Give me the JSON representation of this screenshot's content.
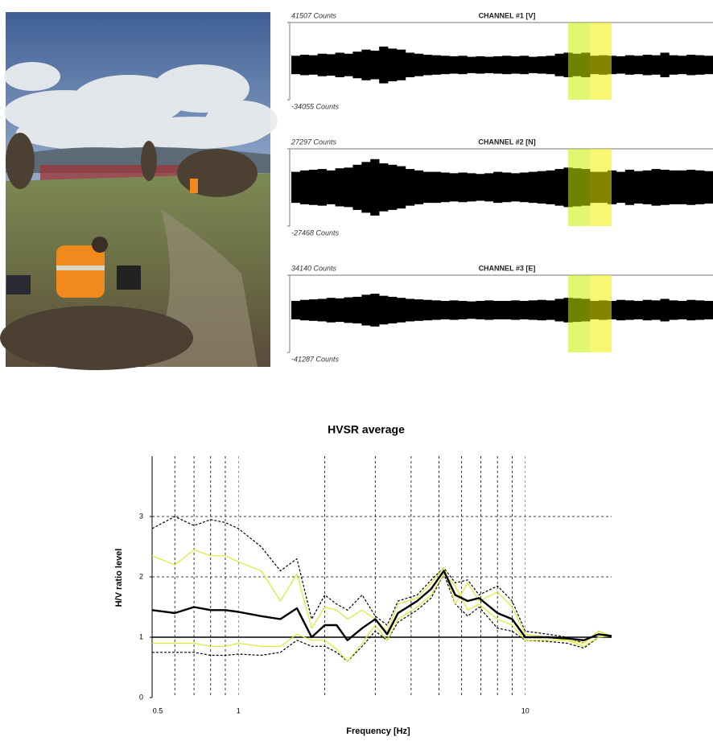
{
  "chart_data": [
    {
      "type": "waveform",
      "title": "CHANNEL #1 [V]",
      "color": "#000000",
      "ylim": [
        -34055,
        41507
      ],
      "yticks": [
        {
          "value": 41507,
          "label": "41507 Counts"
        },
        {
          "value": -34055,
          "label": "-34055 Counts"
        }
      ],
      "values": [
        9000,
        10000,
        9500,
        11000,
        10500,
        12000,
        11000,
        13000,
        15000,
        14000,
        18000,
        16000,
        15000,
        12000,
        11000,
        10000,
        9500,
        9000,
        8500,
        9000,
        8000,
        8500,
        8000,
        8500,
        9000,
        8500,
        9000,
        8000,
        8500,
        9000,
        11000,
        12000,
        11000,
        12000,
        9000,
        9500,
        9000,
        8500,
        9500,
        9000,
        10000,
        9500,
        12000,
        9500,
        9000,
        10000,
        9500,
        9000
      ]
    },
    {
      "type": "waveform",
      "title": "CHANNEL #2 [N]",
      "color": "#000000",
      "ylim": [
        -27468,
        27297
      ],
      "yticks": [
        {
          "value": 27297,
          "label": "27297 Counts"
        },
        {
          "value": -27468,
          "label": "-27468 Counts"
        }
      ],
      "values": [
        11000,
        12000,
        12500,
        13000,
        12000,
        13500,
        14000,
        16000,
        18000,
        20000,
        17000,
        16000,
        15000,
        13000,
        12000,
        11000,
        11000,
        10500,
        10000,
        10500,
        10000,
        9500,
        10000,
        11000,
        10500,
        10000,
        10500,
        11000,
        11500,
        12000,
        13000,
        14000,
        13500,
        13000,
        11000,
        11000,
        12000,
        11000,
        12500,
        11500,
        12000,
        13000,
        12500,
        12000,
        12000,
        12500,
        12000,
        11500
      ]
    },
    {
      "type": "waveform",
      "title": "CHANNEL #3 [E]",
      "color": "#000000",
      "ylim": [
        -41287,
        34140
      ],
      "yticks": [
        {
          "value": 34140,
          "label": "34140 Counts"
        },
        {
          "value": -41287,
          "label": "-41287 Counts"
        }
      ],
      "values": [
        9000,
        10000,
        10500,
        11000,
        12000,
        11500,
        12500,
        13000,
        15000,
        16000,
        14000,
        13000,
        12000,
        11000,
        10500,
        10000,
        9500,
        9000,
        9500,
        9000,
        8500,
        9000,
        9500,
        9000,
        9000,
        9500,
        9000,
        9500,
        10000,
        9500,
        11000,
        12000,
        11500,
        11000,
        9000,
        9500,
        9000,
        10000,
        9500,
        9000,
        10000,
        9500,
        11000,
        9500,
        9000,
        10000,
        9500,
        9000
      ]
    },
    {
      "type": "line",
      "title": "HVSR average",
      "x_label": "Frequency [Hz]",
      "y_label": "H/V ratio level",
      "xscale": "log",
      "xlim": [
        0.5,
        20
      ],
      "ylim": [
        0,
        4
      ],
      "xticks": [
        0.5,
        1,
        10
      ],
      "xgrid": [
        0.6,
        0.7,
        0.8,
        0.9,
        2,
        3,
        4,
        5,
        6,
        7,
        8,
        9
      ],
      "yticks": [
        0,
        1,
        2,
        3
      ],
      "ygrid": [
        2,
        3
      ],
      "reference_line": 1,
      "x": [
        0.5,
        0.6,
        0.7,
        0.8,
        0.9,
        1,
        1.2,
        1.4,
        1.6,
        1.8,
        2,
        2.2,
        2.4,
        2.7,
        3,
        3.3,
        3.6,
        4.2,
        4.7,
        5.2,
        5.7,
        6.3,
        6.9,
        8,
        9,
        10,
        12,
        14,
        16,
        18,
        20
      ],
      "series": [
        {
          "color": "#000000",
          "style": "dashed",
          "values": [
            2.8,
            3.0,
            2.85,
            2.95,
            2.9,
            2.8,
            2.5,
            2.1,
            2.3,
            1.3,
            1.7,
            1.55,
            1.45,
            1.7,
            1.35,
            1.2,
            1.6,
            1.7,
            1.95,
            2.15,
            1.9,
            1.95,
            1.7,
            1.85,
            1.6,
            1.1,
            1.05,
            1.0,
            0.9,
            1.1,
            1.02
          ]
        },
        {
          "color": "#000000",
          "style": "dashed",
          "values": [
            0.75,
            0.75,
            0.75,
            0.7,
            0.7,
            0.72,
            0.7,
            0.75,
            0.95,
            0.85,
            0.85,
            0.75,
            0.6,
            0.85,
            1.1,
            0.95,
            1.25,
            1.45,
            1.65,
            2.05,
            1.55,
            1.35,
            1.5,
            1.15,
            1.1,
            0.95,
            0.93,
            0.9,
            0.82,
            1.0,
            1.0
          ]
        },
        {
          "color": "#dde830",
          "style": "solid",
          "values": [
            2.35,
            2.2,
            2.45,
            2.35,
            2.35,
            2.25,
            2.1,
            1.6,
            2.05,
            1.15,
            1.5,
            1.45,
            1.3,
            1.45,
            1.3,
            1.1,
            1.55,
            1.65,
            1.9,
            2.15,
            1.55,
            1.9,
            1.6,
            1.75,
            1.5,
            1.05,
            1.0,
            0.95,
            0.9,
            1.1,
            1.02
          ]
        },
        {
          "color": "#dde830",
          "style": "solid",
          "values": [
            0.9,
            0.9,
            0.9,
            0.85,
            0.85,
            0.9,
            0.85,
            0.85,
            1.05,
            0.95,
            0.95,
            0.8,
            0.6,
            0.9,
            1.2,
            0.95,
            1.3,
            1.5,
            1.7,
            2.05,
            1.85,
            1.45,
            1.55,
            1.3,
            1.2,
            0.95,
            0.95,
            0.95,
            0.85,
            1.0,
            1.02
          ]
        },
        {
          "color": "#000000",
          "style": "bold",
          "values": [
            1.45,
            1.4,
            1.5,
            1.45,
            1.45,
            1.42,
            1.35,
            1.3,
            1.48,
            1.0,
            1.2,
            1.2,
            0.95,
            1.15,
            1.3,
            1.05,
            1.4,
            1.6,
            1.8,
            2.1,
            1.7,
            1.6,
            1.65,
            1.4,
            1.3,
            1.0,
            1.0,
            0.98,
            0.95,
            1.05,
            1.02
          ]
        }
      ]
    }
  ]
}
